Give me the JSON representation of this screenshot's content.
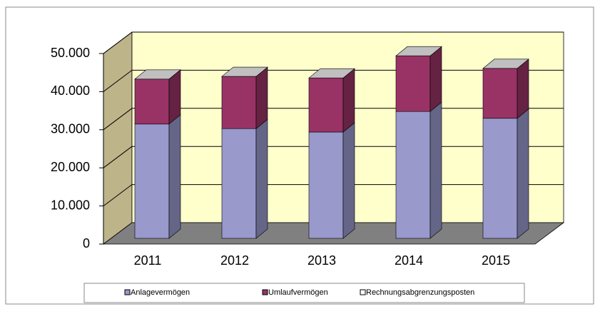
{
  "chart_data": {
    "type": "bar3d_stacked",
    "categories": [
      "2011",
      "2012",
      "2013",
      "2014",
      "2015"
    ],
    "series": [
      {
        "name": "Anlagevermögen",
        "color": "#9999cc",
        "values": [
          30000,
          28800,
          27900,
          33300,
          31500
        ]
      },
      {
        "name": "Umlaufvermögen",
        "color": "#993366",
        "values": [
          11800,
          13700,
          14200,
          14600,
          13100
        ]
      },
      {
        "name": "Rechnungsabgrenzungsposten",
        "color": "#ffffff",
        "values": [
          0,
          0,
          0,
          0,
          0
        ]
      }
    ],
    "ylim": [
      0,
      50000
    ],
    "yticks": [
      0,
      {
        "value": 10000,
        "label": "10.000"
      },
      {
        "value": 20000,
        "label": "20.000"
      },
      {
        "value": 30000,
        "label": "30.000"
      },
      {
        "value": 40000,
        "label": "40.000"
      },
      {
        "value": 50000,
        "label": "50.000"
      }
    ],
    "grid": true,
    "legend": "bottom"
  }
}
